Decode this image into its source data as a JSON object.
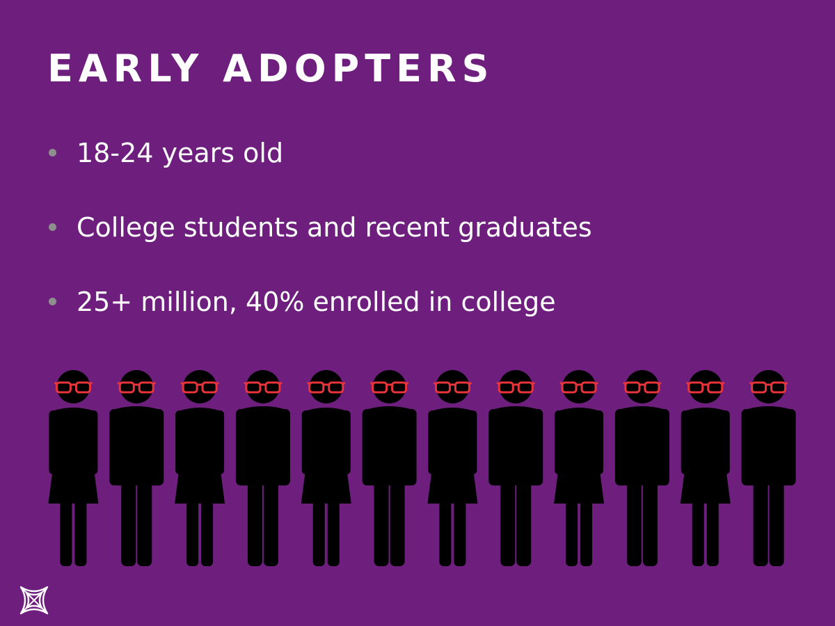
{
  "slide": {
    "title": "EARLY ADOPTERS",
    "bullets": [
      "18-24 years old",
      "College students and recent graduates",
      "25+ million, 40% enrolled in college"
    ]
  },
  "illustration": {
    "figures": [
      "woman",
      "man",
      "woman",
      "man",
      "woman",
      "man",
      "woman",
      "man",
      "woman",
      "man",
      "woman",
      "man"
    ],
    "figure_icon": "person-with-glasses-icon",
    "figure_color": "#000000",
    "glasses_color": "#e8343a"
  },
  "logo": {
    "icon": "brand-logo-icon",
    "color": "#ffffff"
  },
  "colors": {
    "background": "#6e1f7e",
    "text": "#ffffff",
    "bullet": "#8e8e8e"
  }
}
